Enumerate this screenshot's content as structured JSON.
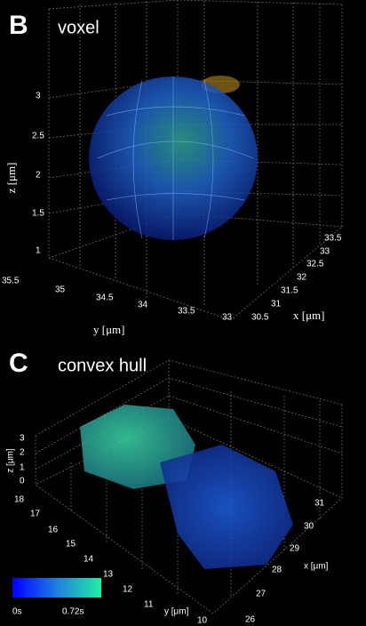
{
  "panels": [
    {
      "letter": "B",
      "title": "voxel",
      "z_label": "z [μm]",
      "y_label": "y [μm]",
      "x_label": "x [μm]",
      "z_ticks": [
        "3",
        "2.5",
        "2",
        "1.5",
        "1"
      ],
      "y_ticks": [
        "35.5",
        "35",
        "34.5",
        "34",
        "33.5",
        "33"
      ],
      "x_ticks": [
        "30.5",
        "31",
        "31.5",
        "32",
        "32.5",
        "33",
        "33.5"
      ]
    },
    {
      "letter": "C",
      "title": "convex hull",
      "z_label": "z [μm]",
      "y_label": "y [μm]",
      "x_label": "x [μm]",
      "z_ticks": [
        "3",
        "2",
        "1",
        "0"
      ],
      "y_ticks": [
        "18",
        "17",
        "16",
        "15",
        "14",
        "13",
        "12",
        "11",
        "10"
      ],
      "x_ticks": [
        "26",
        "27",
        "28",
        "29",
        "30",
        "31"
      ]
    }
  ],
  "colorbar": {
    "min_label": "0s",
    "max_label": "0.72s"
  }
}
